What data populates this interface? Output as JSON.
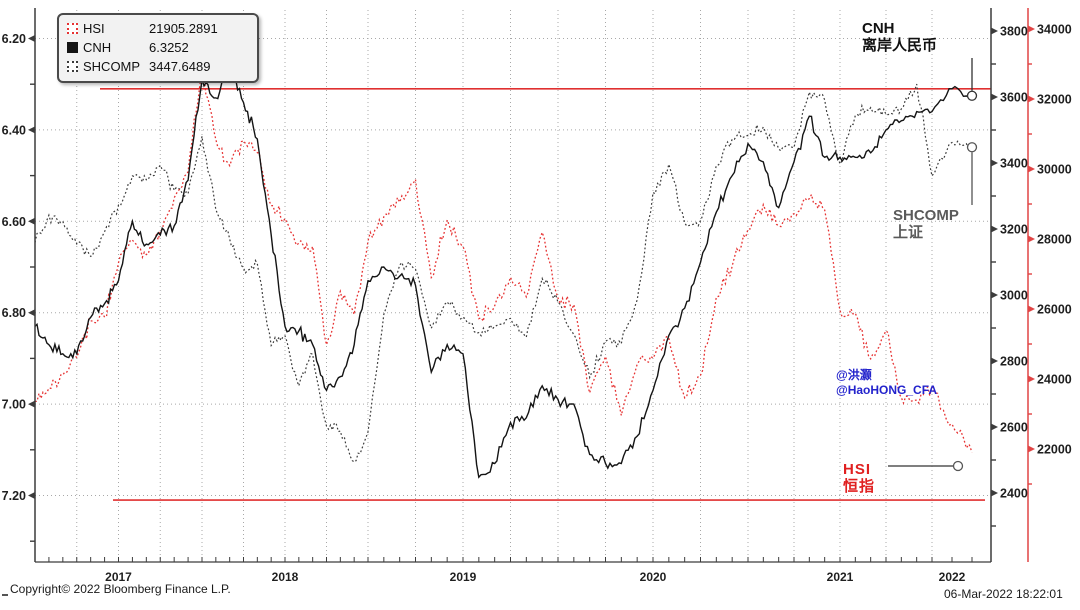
{
  "legend": {
    "rows": [
      {
        "label": "HSI",
        "value": "21905.2891",
        "swatch": "red-dotted-square"
      },
      {
        "label": "CNH",
        "value": "6.3252",
        "swatch": "black-solid-square"
      },
      {
        "label": "SHCOMP",
        "value": "3447.6489",
        "swatch": "dark-dotted-square"
      }
    ]
  },
  "annotations": {
    "cnh": {
      "line1": "CNH",
      "line2": "离岸人民币"
    },
    "shcomp": {
      "line1": "SHCOMP",
      "line2": "上证"
    },
    "hsi": {
      "line1": "HSI",
      "line2": "恒指"
    },
    "watermark": {
      "line1": "@洪灏",
      "line2": "@HaoHONG_CFA"
    }
  },
  "footer": {
    "copyright": "Copyright© 2022 Bloomberg Finance L.P.",
    "timestamp": "06-Mar-2022 18:22:01"
  },
  "colors": {
    "hsi_red": "#e63232",
    "cnh_black": "#141414",
    "shcomp_dark": "#3a3a3a",
    "ref_line_red": "#e03030",
    "red_axis": "#e04545",
    "axis": "#3c3c3c",
    "grid": "#a8a8a8",
    "tick_label": "#1f1f1f",
    "watermark_blue": "#2323cc",
    "annotation_gray": "#5a5a5a",
    "annotation_red": "#e02020"
  },
  "chart_data": {
    "type": "line",
    "frequency": "monthly",
    "x_start": "2017-01",
    "x_end": "2022-03",
    "x_tick_labels": [
      "2017",
      "2018",
      "2019",
      "2020",
      "2021",
      "2022"
    ],
    "grid": "dotted",
    "legend_position": "top-left",
    "axes": {
      "left": {
        "series": "CNH",
        "inverted": true,
        "range": [
          6.2,
          7.2
        ],
        "ticks": [
          6.2,
          6.4,
          6.6,
          6.8,
          7.0,
          7.2
        ]
      },
      "right_inner": {
        "series": "SHCOMP",
        "range": [
          2400,
          3800
        ],
        "ticks": [
          3800,
          3600,
          3400,
          3200,
          3000,
          2800,
          2600,
          2400
        ]
      },
      "right_outer": {
        "series": "HSI",
        "range": [
          22000,
          34000
        ],
        "ticks": [
          34000,
          32000,
          30000,
          28000,
          26000,
          24000,
          22000
        ]
      }
    },
    "ref_lines": [
      {
        "axis": "left",
        "value": 6.31
      },
      {
        "axis": "left",
        "value": 7.21
      }
    ],
    "series": [
      {
        "name": "HSI",
        "axis": "right_outer",
        "style": "dotted",
        "color": "#e63232",
        "last": 21905.2891,
        "values": [
          23361,
          23741,
          24112,
          24615,
          25661,
          25765,
          27324,
          27970,
          27554,
          28246,
          29177,
          29919,
          32887,
          30845,
          30093,
          30808,
          30469,
          28955,
          28583,
          27889,
          27789,
          24980,
          26507,
          25846,
          27942,
          28633,
          29051,
          29699,
          26901,
          28543,
          27778,
          25725,
          26092,
          26907,
          26346,
          28190,
          26313,
          26130,
          23603,
          24644,
          22961,
          24427,
          24595,
          25177,
          23459,
          24107,
          26341,
          27231,
          28284,
          28980,
          28378,
          28724,
          29152,
          28828,
          25961,
          25879,
          24576,
          25377,
          23475,
          23398,
          23802,
          22713,
          21905.2891
        ]
      },
      {
        "name": "CNH",
        "axis": "left",
        "style": "solid",
        "color": "#141414",
        "last": 6.3252,
        "values": [
          6.83,
          6.87,
          6.89,
          6.89,
          6.81,
          6.78,
          6.73,
          6.6,
          6.65,
          6.63,
          6.61,
          6.51,
          6.29,
          6.33,
          6.27,
          6.34,
          6.42,
          6.63,
          6.83,
          6.84,
          6.87,
          6.97,
          6.94,
          6.87,
          6.73,
          6.7,
          6.72,
          6.74,
          6.93,
          6.87,
          6.89,
          7.16,
          7.13,
          7.04,
          7.03,
          6.96,
          6.99,
          7.0,
          7.11,
          7.13,
          7.13,
          7.07,
          6.97,
          6.85,
          6.79,
          6.69,
          6.58,
          6.5,
          6.43,
          6.47,
          6.57,
          6.47,
          6.37,
          6.46,
          6.46,
          6.46,
          6.45,
          6.4,
          6.38,
          6.36,
          6.36,
          6.31,
          6.3252
        ]
      },
      {
        "name": "SHCOMP",
        "axis": "right_inner",
        "style": "dotted",
        "color": "#3a3a3a",
        "last": 3447.6489,
        "values": [
          3159,
          3242,
          3223,
          3155,
          3117,
          3192,
          3273,
          3361,
          3349,
          3393,
          3317,
          3307,
          3481,
          3259,
          3169,
          3082,
          3095,
          2847,
          2876,
          2725,
          2821,
          2603,
          2588,
          2494,
          2585,
          2941,
          3091,
          3078,
          2899,
          2979,
          2933,
          2886,
          2905,
          2929,
          2872,
          3050,
          2977,
          2880,
          2750,
          2860,
          2852,
          2985,
          3310,
          3396,
          3218,
          3225,
          3392,
          3473,
          3483,
          3509,
          3442,
          3447,
          3615,
          3591,
          3397,
          3544,
          3568,
          3547,
          3564,
          3639,
          3361,
          3462,
          3447.6489
        ]
      }
    ]
  }
}
